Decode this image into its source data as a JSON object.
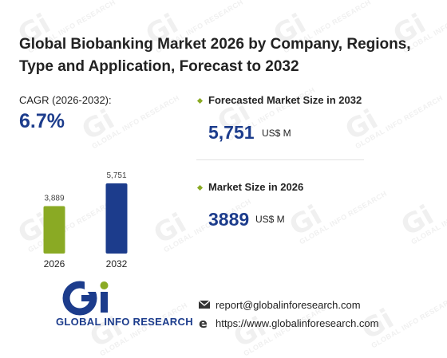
{
  "title": "Global Biobanking Market 2026 by Company, Regions, Type and Application, Forecast to 2032",
  "cagr": {
    "label": "CAGR (2026-2032):",
    "value": "6.7%"
  },
  "forecast": {
    "label": "Forecasted Market Size in 2032",
    "value": "5,751",
    "unit": "US$ M"
  },
  "current": {
    "label": "Market Size in 2026",
    "value": "3889",
    "unit": "US$ M"
  },
  "colors": {
    "accent": "#1c3c8c",
    "bar_2026": "#8aaa24",
    "bar_2032": "#1c3c8c"
  },
  "logo": {
    "text": "GLOBAL INFO RESEARCH",
    "icon": "gi-logo-icon"
  },
  "watermark": {
    "text": "GLOBAL INFO RESEARCH"
  },
  "contact": {
    "email": "report@globalinforesearch.com",
    "website": "https://www.globalinforesearch.com",
    "email_icon": "envelope-icon",
    "website_icon": "browser-e-icon"
  },
  "chart_data": {
    "type": "bar",
    "categories": [
      "2026",
      "2032"
    ],
    "values": [
      3889,
      5751
    ],
    "value_labels": [
      "3,889",
      "5,751"
    ],
    "title": "",
    "xlabel": "",
    "ylabel": "",
    "ylim": [
      0,
      5751
    ],
    "grid": false
  }
}
